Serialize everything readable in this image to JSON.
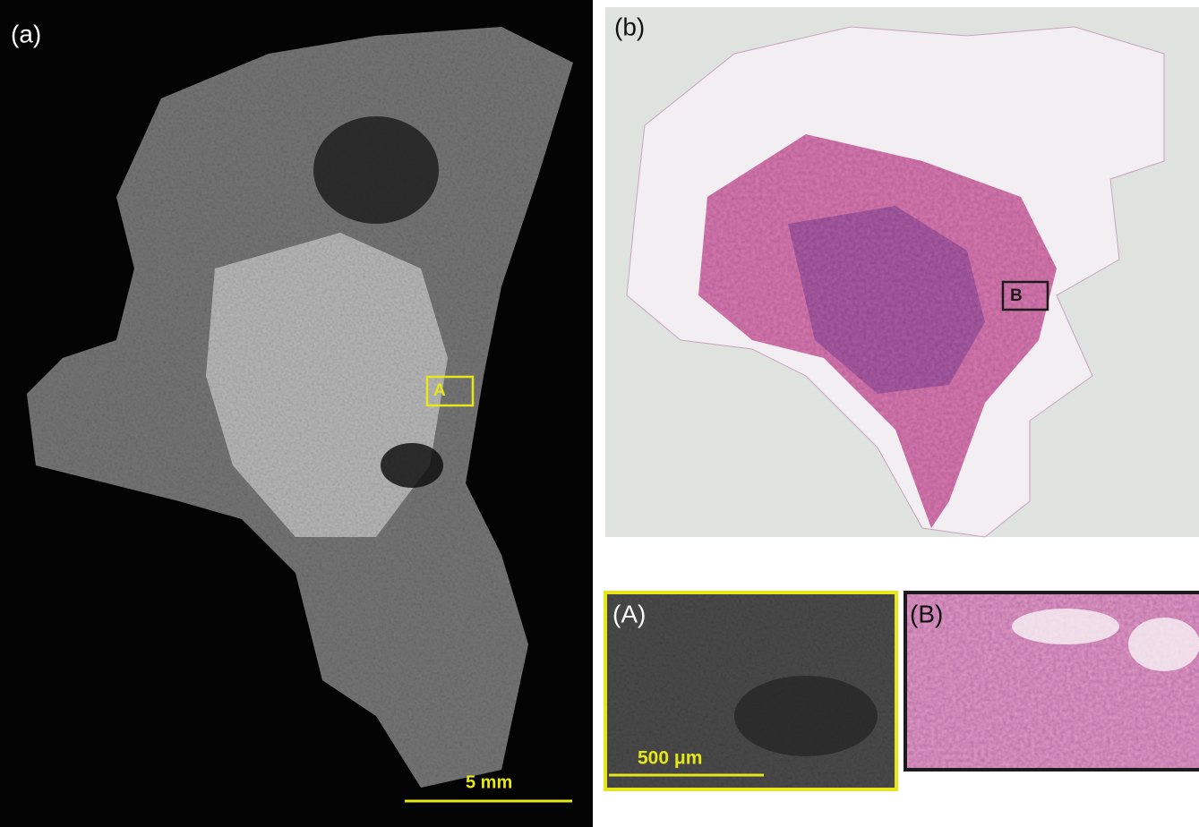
{
  "panels": [
    {
      "label": "(a)",
      "roi_label": "A",
      "scale_bar": "5 mm"
    },
    {
      "label": "(b)",
      "roi_label": "B"
    },
    {
      "label": "(A)",
      "scale_bar": "500 μm"
    },
    {
      "label": "(B)"
    }
  ]
}
